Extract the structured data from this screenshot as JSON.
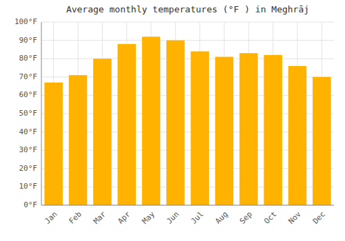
{
  "chart_data": {
    "type": "bar",
    "title": "Average monthly temperatures (°F ) in Meghrāj",
    "categories": [
      "Jan",
      "Feb",
      "Mar",
      "Apr",
      "May",
      "Jun",
      "Jul",
      "Aug",
      "Sep",
      "Oct",
      "Nov",
      "Dec"
    ],
    "values": [
      67,
      71,
      80,
      88,
      92,
      90,
      84,
      81,
      83,
      82,
      76,
      70
    ],
    "color": "#FFB300",
    "ylim": [
      0,
      100
    ],
    "yticks": [
      {
        "value": 0,
        "label": "0°F"
      },
      {
        "value": 10,
        "label": "10°F"
      },
      {
        "value": 20,
        "label": "20°F"
      },
      {
        "value": 30,
        "label": "30°F"
      },
      {
        "value": 40,
        "label": "40°F"
      },
      {
        "value": 50,
        "label": "50°F"
      },
      {
        "value": 60,
        "label": "60°F"
      },
      {
        "value": 70,
        "label": "70°F"
      },
      {
        "value": 80,
        "label": "80°F"
      },
      {
        "value": 90,
        "label": "90°F"
      },
      {
        "value": 100,
        "label": "100°F"
      }
    ],
    "grid": true
  }
}
